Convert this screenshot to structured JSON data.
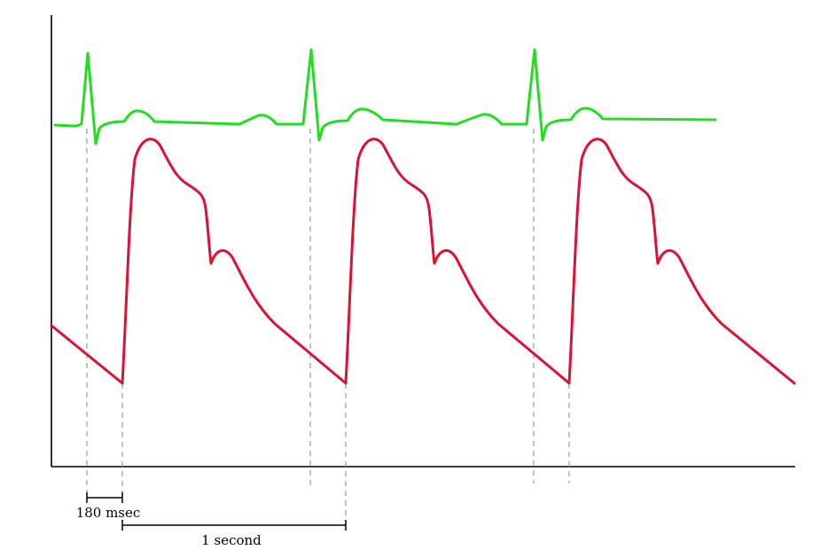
{
  "colors": {
    "ecg_trace": "#22dd22",
    "pressure_trace": "#dd1133",
    "axis": "#000000",
    "guide_lines": "#9a9a9a"
  },
  "annotations": {
    "delay_label": "180 msec",
    "period_label": "1 second"
  }
}
